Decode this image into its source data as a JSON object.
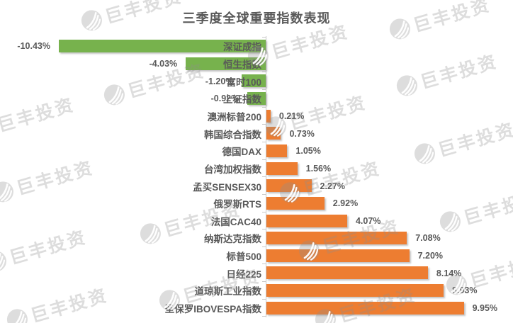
{
  "title": "三季度全球重要指数表现",
  "watermark": {
    "text": "巨丰投资",
    "logo": "jufeng-swirl-logo"
  },
  "colors": {
    "positive_bar": "#ED7D31",
    "negative_bar": "#77B24D",
    "text": "#595959",
    "axis": "#C9C9C9",
    "watermark_gray": "#E4E4E4",
    "background": "#FFFFFF"
  },
  "chart_data": {
    "type": "bar",
    "orientation": "horizontal",
    "title": "三季度全球重要指数表现",
    "xlabel": "",
    "ylabel": "",
    "unit": "%",
    "xlim": [
      -10.43,
      9.95
    ],
    "grid": false,
    "legend": false,
    "value_axis_hidden": true,
    "categories": [
      "深证成指",
      "恒生指数",
      "富时100",
      "上证指数",
      "澳洲标普200",
      "韩国综合指数",
      "德国DAX",
      "台湾加权指数",
      "孟买SENSEX30",
      "俄罗斯RTS",
      "法国CAC40",
      "纳斯达克指数",
      "标普500",
      "日经225",
      "道琼斯工业指数",
      "圣保罗IBOVESPA指数"
    ],
    "values": [
      -10.43,
      -4.03,
      -1.2,
      -0.92,
      0.21,
      0.73,
      1.05,
      1.56,
      2.27,
      2.92,
      4.07,
      7.08,
      7.2,
      8.14,
      8.93,
      9.95
    ],
    "value_labels": [
      "-10.43%",
      "-4.03%",
      "-1.20%",
      "-0.92%",
      "0.21%",
      "0.73%",
      "1.05%",
      "1.56%",
      "2.27%",
      "2.92%",
      "4.07%",
      "7.08%",
      "7.20%",
      "8.14%",
      "8.93%",
      "9.95%"
    ],
    "series": [
      {
        "name": "negative-change",
        "color": "#77B24D",
        "categories": [
          "深证成指",
          "恒生指数",
          "富时100",
          "上证指数"
        ],
        "values": [
          -10.43,
          -4.03,
          -1.2,
          -0.92
        ]
      },
      {
        "name": "positive-change",
        "color": "#ED7D31",
        "categories": [
          "澳洲标普200",
          "韩国综合指数",
          "德国DAX",
          "台湾加权指数",
          "孟买SENSEX30",
          "俄罗斯RTS",
          "法国CAC40",
          "纳斯达克指数",
          "标普500",
          "日经225",
          "道琼斯工业指数",
          "圣保罗IBOVESPA指数"
        ],
        "values": [
          0.21,
          0.73,
          1.05,
          1.56,
          2.27,
          2.92,
          4.07,
          7.08,
          7.2,
          8.14,
          8.93,
          9.95
        ]
      }
    ]
  }
}
